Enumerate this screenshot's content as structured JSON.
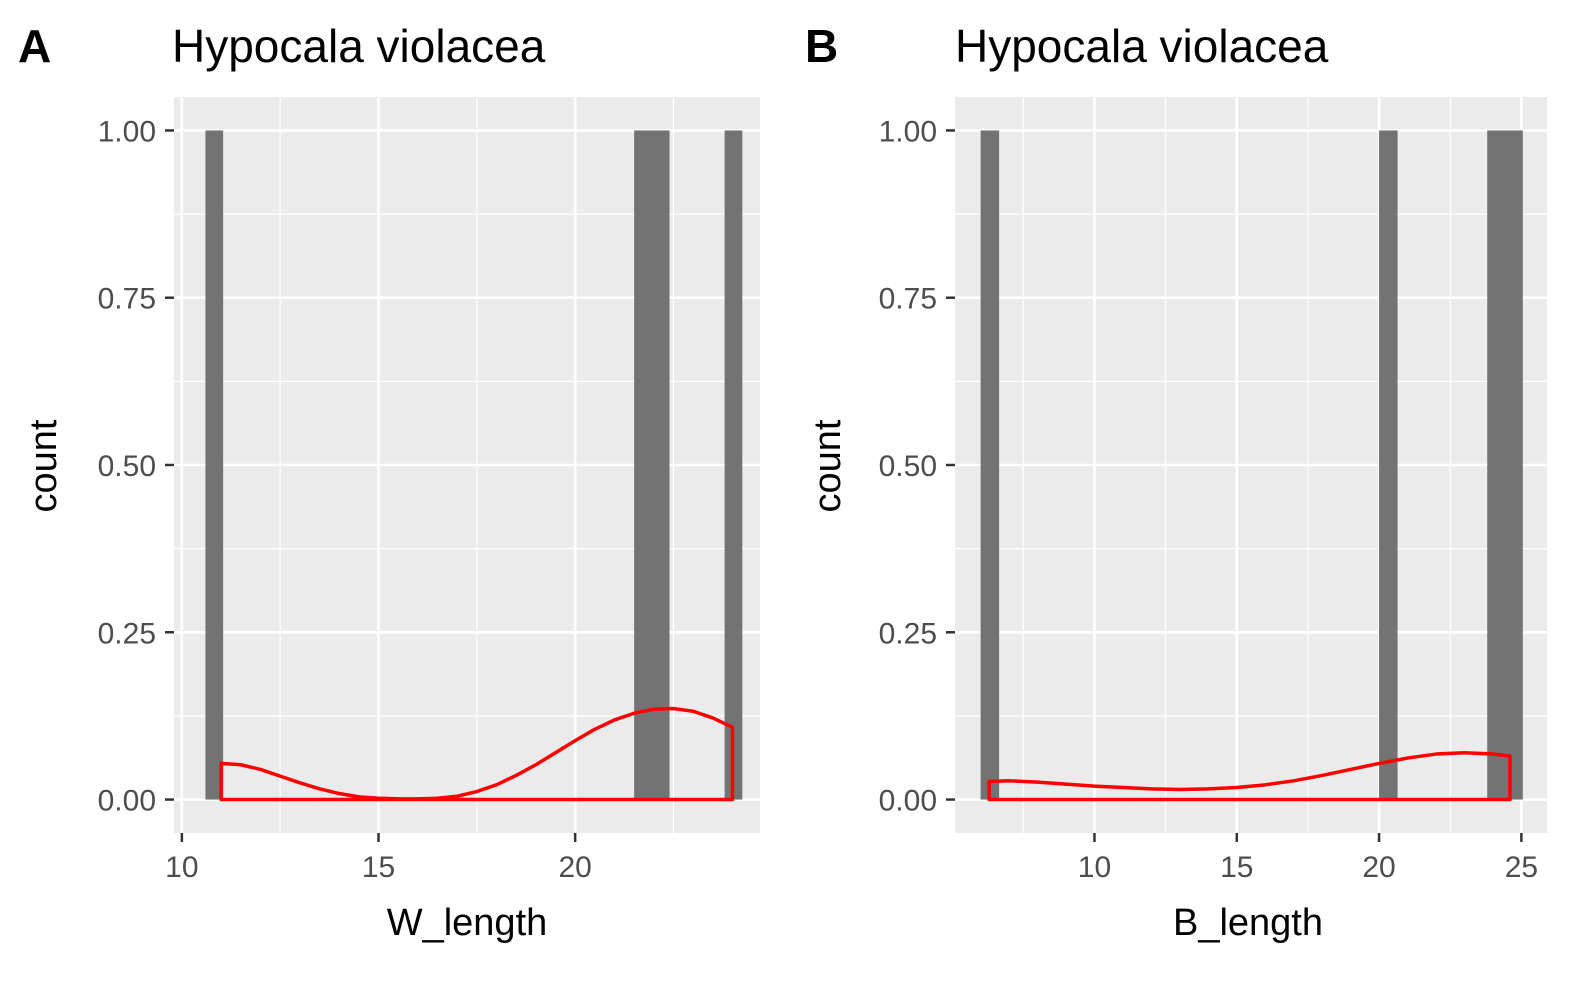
{
  "chart_data": [
    {
      "type": "bar",
      "panel_label": "A",
      "title": "Hypocala violacea",
      "xlabel": "W_length",
      "ylabel": "count",
      "xlim": [
        9.8,
        24.7
      ],
      "ylim": [
        -0.05,
        1.05
      ],
      "x_ticks": [
        10,
        15,
        20
      ],
      "x_minor_ticks": [
        12.5,
        17.5,
        22.5
      ],
      "y_ticks": [
        0,
        0.25,
        0.5,
        0.75,
        1
      ],
      "y_tick_labels": [
        "0.00",
        "0.25",
        "0.50",
        "0.75",
        "1.00"
      ],
      "grid": true,
      "bars": [
        {
          "x0": 10.6,
          "x1": 11.05,
          "count": 1
        },
        {
          "x0": 21.5,
          "x1": 22.4,
          "count": 1
        },
        {
          "x0": 23.8,
          "x1": 24.25,
          "count": 1
        }
      ],
      "bar_color": "#737373",
      "density": {
        "color": "#ff0000",
        "x": [
          11.0,
          11.5,
          12.0,
          12.5,
          13.0,
          13.5,
          14.0,
          14.5,
          15.0,
          15.5,
          16.0,
          16.5,
          17.0,
          17.5,
          18.0,
          18.5,
          19.0,
          19.5,
          20.0,
          20.5,
          21.0,
          21.5,
          22.0,
          22.5,
          23.0,
          23.5,
          24.0,
          24.0
        ],
        "y": [
          0.054,
          0.052,
          0.045,
          0.035,
          0.025,
          0.016,
          0.009,
          0.004,
          0.002,
          0.001,
          0.001,
          0.002,
          0.005,
          0.012,
          0.022,
          0.036,
          0.052,
          0.07,
          0.088,
          0.105,
          0.119,
          0.129,
          0.135,
          0.136,
          0.132,
          0.122,
          0.108,
          0.108
        ]
      }
    },
    {
      "type": "bar",
      "panel_label": "B",
      "title": "Hypocala violacea",
      "xlabel": "B_length",
      "ylabel": "count",
      "xlim": [
        5.1,
        25.9
      ],
      "ylim": [
        -0.05,
        1.05
      ],
      "x_ticks": [
        10,
        15,
        20,
        25
      ],
      "x_minor_ticks": [
        7.5,
        12.5,
        17.5,
        22.5
      ],
      "y_ticks": [
        0,
        0.25,
        0.5,
        0.75,
        1
      ],
      "y_tick_labels": [
        "0.00",
        "0.25",
        "0.50",
        "0.75",
        "1.00"
      ],
      "grid": true,
      "bars": [
        {
          "x0": 6.0,
          "x1": 6.65,
          "count": 1
        },
        {
          "x0": 20.0,
          "x1": 20.65,
          "count": 1
        },
        {
          "x0": 23.8,
          "x1": 25.05,
          "count": 1
        }
      ],
      "bar_color": "#737373",
      "density": {
        "color": "#ff0000",
        "x": [
          6.3,
          7.0,
          8.0,
          9.0,
          10.0,
          11.0,
          12.0,
          13.0,
          14.0,
          15.0,
          16.0,
          17.0,
          18.0,
          19.0,
          20.0,
          21.0,
          22.0,
          23.0,
          24.0,
          24.6,
          24.6
        ],
        "y": [
          0.027,
          0.028,
          0.026,
          0.023,
          0.02,
          0.018,
          0.016,
          0.015,
          0.016,
          0.018,
          0.022,
          0.028,
          0.036,
          0.045,
          0.054,
          0.062,
          0.068,
          0.07,
          0.068,
          0.065,
          0.065
        ]
      }
    }
  ]
}
